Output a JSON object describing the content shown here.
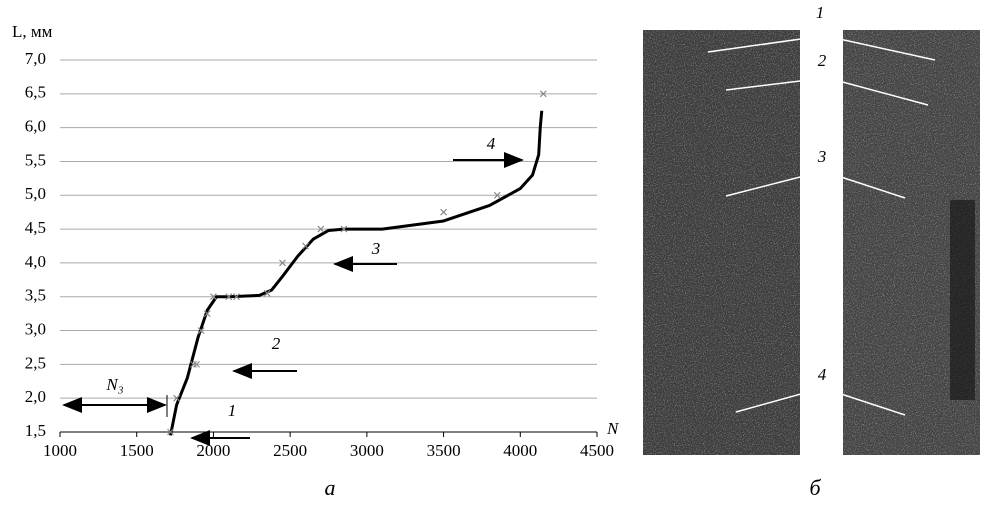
{
  "chart_data": {
    "type": "line",
    "y_label": "L, мм",
    "x_label": "N",
    "panel_labels": [
      "а",
      "б"
    ],
    "xlim": [
      1000,
      4500
    ],
    "xticks": [
      1000,
      1500,
      2000,
      2500,
      3000,
      3500,
      4000,
      4500
    ],
    "ylim": [
      1.5,
      7.0
    ],
    "yticks": [
      {
        "value": 1.5,
        "label": "1,5"
      },
      {
        "value": 2.0,
        "label": "2,0"
      },
      {
        "value": 2.5,
        "label": "2,5"
      },
      {
        "value": 3.0,
        "label": "3,0"
      },
      {
        "value": 3.5,
        "label": "3,5"
      },
      {
        "value": 4.0,
        "label": "4,0"
      },
      {
        "value": 4.5,
        "label": "4,5"
      },
      {
        "value": 5.0,
        "label": "5,0"
      },
      {
        "value": 5.5,
        "label": "5,5"
      },
      {
        "value": 6.0,
        "label": "6,0"
      },
      {
        "value": 6.5,
        "label": "6,5"
      },
      {
        "value": 7.0,
        "label": "7,0"
      }
    ],
    "grid": true,
    "series": [
      {
        "color": "#000000",
        "style": "line",
        "x": [
          1720,
          1760,
          1830,
          1900,
          1960,
          2020,
          2100,
          2300,
          2380,
          2450,
          2550,
          2650,
          2750,
          2850,
          3100,
          3500,
          3800,
          4000,
          4080,
          4120,
          4130,
          4140
        ],
        "values": [
          1.45,
          1.9,
          2.3,
          2.9,
          3.3,
          3.5,
          3.5,
          3.52,
          3.6,
          3.8,
          4.1,
          4.35,
          4.48,
          4.5,
          4.5,
          4.62,
          4.85,
          5.1,
          5.3,
          5.6,
          6.0,
          6.25
        ]
      },
      {
        "color": "#888888",
        "style": "markers",
        "x": [
          1720,
          1760,
          1870,
          1890,
          1920,
          1960,
          2000,
          2100,
          2150,
          2350,
          2450,
          2600,
          2700,
          2850,
          3500,
          3850,
          4150
        ],
        "values": [
          1.5,
          2.0,
          2.5,
          2.5,
          3.0,
          3.25,
          3.5,
          3.5,
          3.5,
          3.55,
          4.0,
          4.25,
          4.5,
          4.5,
          4.75,
          5.0,
          6.5
        ]
      }
    ],
    "annotations": [
      "1",
      "2",
      "3",
      "4",
      "N₃"
    ]
  },
  "photo": {
    "labels": [
      "1",
      "2",
      "3",
      "4"
    ]
  }
}
